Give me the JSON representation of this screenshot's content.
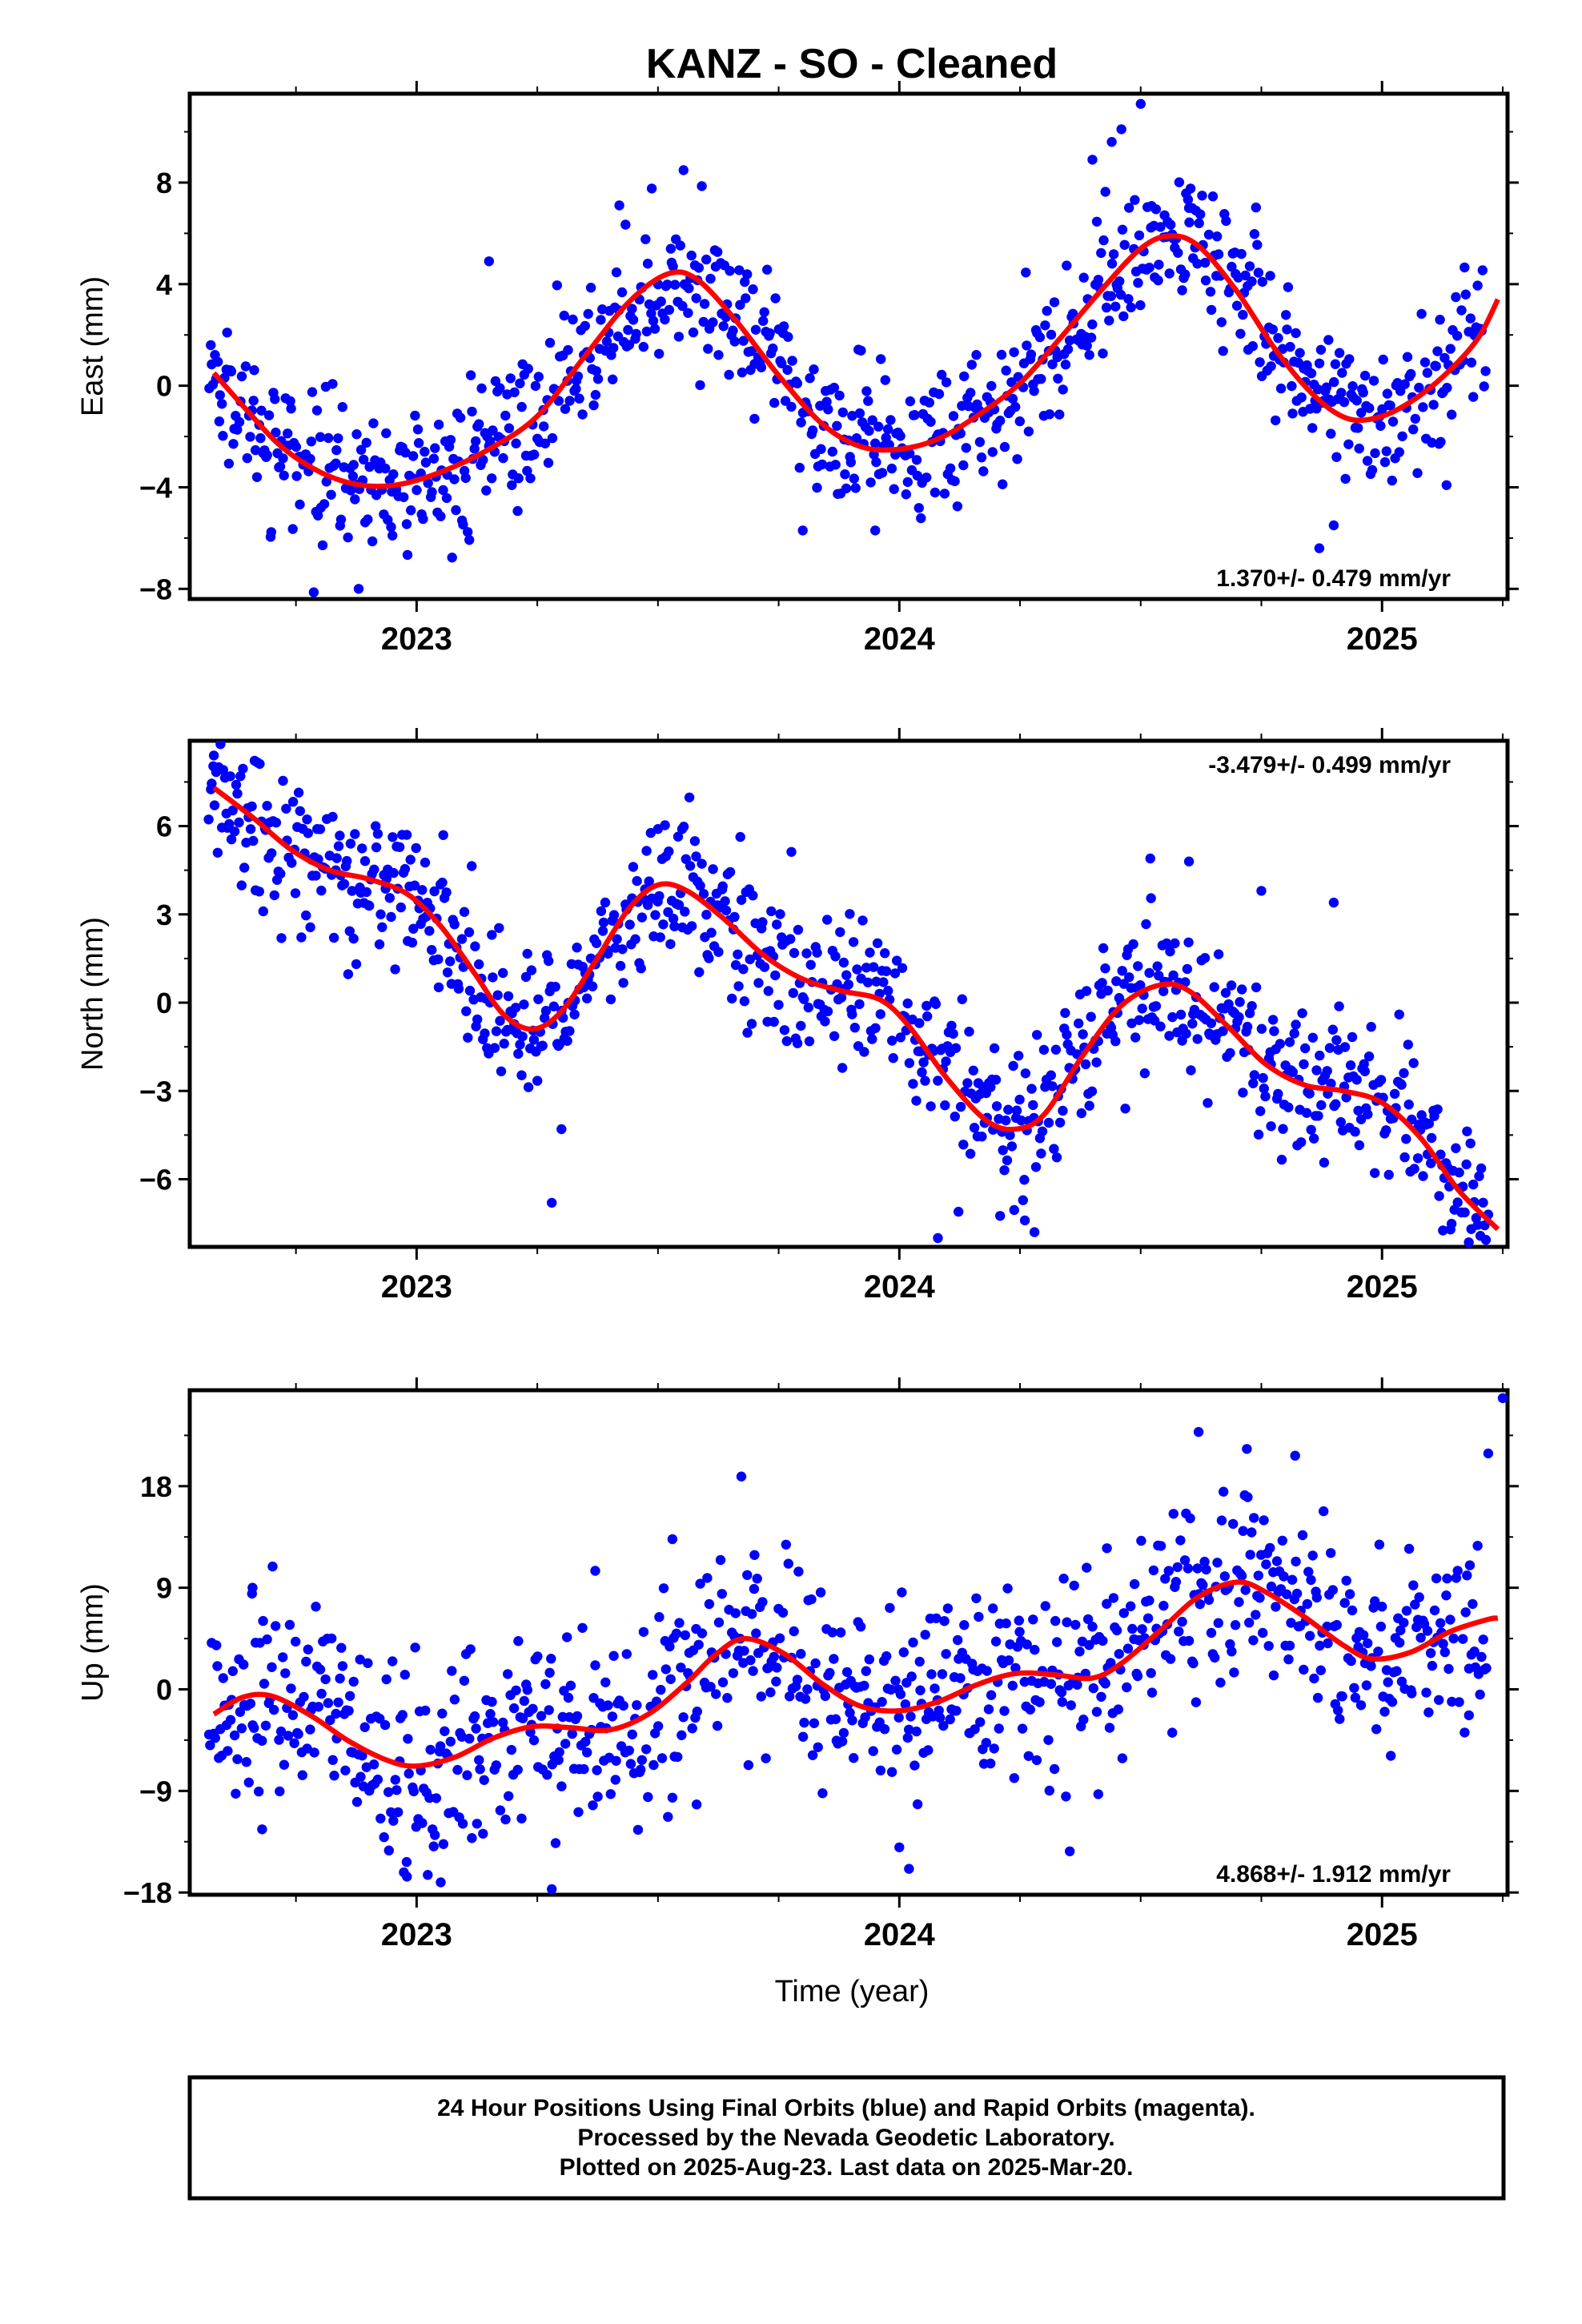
{
  "title": "KANZ  - SO - Cleaned",
  "xlabel": "Time (year)",
  "footer": {
    "line1": "24 Hour Positions Using Final Orbits (blue) and Rapid Orbits (magenta).",
    "line2": "Processed by the Nevada Geodetic Laboratory.",
    "line3": "Plotted on 2025-Aug-23. Last data on 2025-Mar-20."
  },
  "colors": {
    "observations": "#0000ff",
    "fit": "#ff0000",
    "axes": "#000000"
  },
  "chart_data": [
    {
      "type": "scatter",
      "panel": "east",
      "ylabel": "East (mm)",
      "xlim": [
        2022.53,
        2025.26
      ],
      "ylim": [
        -8.4,
        11.5
      ],
      "xticks": [
        2023,
        2024,
        2025
      ],
      "xtick_labels": [
        "2023",
        "2024",
        "2025"
      ],
      "yticks": [
        -8,
        -4,
        0,
        4,
        8
      ],
      "ytick_labels": [
        "−8",
        "−4",
        "0",
        "4",
        "8"
      ],
      "rate_label": "1.370+/- 0.479 mm/yr",
      "rate_position": "bottom-right",
      "grid": false,
      "fit_points": [
        [
          2022.58,
          0.5
        ],
        [
          2022.65,
          -1.0
        ],
        [
          2022.72,
          -2.4
        ],
        [
          2022.8,
          -3.4
        ],
        [
          2022.88,
          -3.9
        ],
        [
          2022.96,
          -3.9
        ],
        [
          2023.05,
          -3.4
        ],
        [
          2023.15,
          -2.5
        ],
        [
          2023.25,
          -1.2
        ],
        [
          2023.35,
          1.2
        ],
        [
          2023.44,
          3.3
        ],
        [
          2023.52,
          4.4
        ],
        [
          2023.58,
          4.2
        ],
        [
          2023.66,
          2.6
        ],
        [
          2023.75,
          0.4
        ],
        [
          2023.84,
          -1.5
        ],
        [
          2023.92,
          -2.4
        ],
        [
          2024.0,
          -2.5
        ],
        [
          2024.08,
          -2.1
        ],
        [
          2024.16,
          -1.2
        ],
        [
          2024.25,
          0.1
        ],
        [
          2024.33,
          1.8
        ],
        [
          2024.42,
          3.8
        ],
        [
          2024.5,
          5.4
        ],
        [
          2024.56,
          5.9
        ],
        [
          2024.62,
          5.5
        ],
        [
          2024.7,
          3.7
        ],
        [
          2024.78,
          1.4
        ],
        [
          2024.86,
          -0.4
        ],
        [
          2024.93,
          -1.3
        ],
        [
          2025.0,
          -1.2
        ],
        [
          2025.07,
          -0.5
        ],
        [
          2025.14,
          0.6
        ],
        [
          2025.2,
          1.9
        ],
        [
          2025.24,
          3.4
        ]
      ],
      "scatter_spread": 1.4,
      "outliers": [
        [
          2022.88,
          -8.0
        ],
        [
          2022.95,
          -5.9
        ],
        [
          2023.15,
          4.9
        ],
        [
          2023.42,
          7.1
        ],
        [
          2023.7,
          -1.3
        ],
        [
          2023.8,
          -5.7
        ],
        [
          2023.95,
          -5.7
        ],
        [
          2024.4,
          8.9
        ],
        [
          2024.46,
          10.1
        ],
        [
          2024.44,
          9.6
        ],
        [
          2024.5,
          11.1
        ],
        [
          2024.6,
          7.0
        ],
        [
          2024.87,
          -6.4
        ],
        [
          2024.9,
          -5.5
        ],
        [
          2025.12,
          2.6
        ]
      ]
    },
    {
      "type": "scatter",
      "panel": "north",
      "ylabel": "North (mm)",
      "xlim": [
        2022.53,
        2025.26
      ],
      "ylim": [
        -8.3,
        8.9
      ],
      "xticks": [
        2023,
        2024,
        2025
      ],
      "xtick_labels": [
        "2023",
        "2024",
        "2025"
      ],
      "yticks": [
        -6,
        -3,
        0,
        3,
        6
      ],
      "ytick_labels": [
        "−6",
        "−3",
        "0",
        "3",
        "6"
      ],
      "rate_label": "-3.479+/- 0.499 mm/yr",
      "rate_position": "top-right",
      "grid": false,
      "fit_points": [
        [
          2022.58,
          7.3
        ],
        [
          2022.66,
          6.3
        ],
        [
          2022.74,
          5.2
        ],
        [
          2022.82,
          4.5
        ],
        [
          2022.9,
          4.2
        ],
        [
          2022.98,
          3.7
        ],
        [
          2023.05,
          2.6
        ],
        [
          2023.12,
          1.0
        ],
        [
          2023.18,
          -0.4
        ],
        [
          2023.24,
          -0.9
        ],
        [
          2023.3,
          -0.3
        ],
        [
          2023.37,
          1.4
        ],
        [
          2023.44,
          3.2
        ],
        [
          2023.5,
          4.0
        ],
        [
          2023.56,
          3.8
        ],
        [
          2023.64,
          2.8
        ],
        [
          2023.72,
          1.6
        ],
        [
          2023.8,
          0.8
        ],
        [
          2023.88,
          0.4
        ],
        [
          2023.96,
          0.1
        ],
        [
          2024.02,
          -0.8
        ],
        [
          2024.1,
          -2.6
        ],
        [
          2024.18,
          -4.0
        ],
        [
          2024.24,
          -4.3
        ],
        [
          2024.3,
          -3.8
        ],
        [
          2024.38,
          -1.8
        ],
        [
          2024.46,
          -0.1
        ],
        [
          2024.54,
          0.6
        ],
        [
          2024.6,
          0.4
        ],
        [
          2024.68,
          -0.8
        ],
        [
          2024.76,
          -2.1
        ],
        [
          2024.84,
          -2.8
        ],
        [
          2024.92,
          -3.0
        ],
        [
          2025.0,
          -3.4
        ],
        [
          2025.08,
          -4.6
        ],
        [
          2025.16,
          -6.4
        ],
        [
          2025.24,
          -7.7
        ]
      ],
      "scatter_spread": 1.3,
      "outliers": [
        [
          2022.58,
          8.4
        ],
        [
          2022.59,
          8.0
        ],
        [
          2023.28,
          -6.8
        ],
        [
          2023.3,
          -4.3
        ],
        [
          2023.5,
          5.9
        ],
        [
          2023.55,
          5.9
        ],
        [
          2024.08,
          -8.0
        ],
        [
          2024.28,
          -7.8
        ],
        [
          2024.26,
          -7.4
        ],
        [
          2024.52,
          4.9
        ],
        [
          2024.6,
          4.8
        ],
        [
          2024.75,
          3.8
        ],
        [
          2024.9,
          3.4
        ],
        [
          2024.77,
          -4.2
        ],
        [
          2025.22,
          -7.2
        ]
      ]
    },
    {
      "type": "scatter",
      "panel": "up",
      "ylabel": "Up (mm)",
      "xlim": [
        2022.53,
        2025.26
      ],
      "ylim": [
        -18.2,
        26.5
      ],
      "xticks": [
        2023,
        2024,
        2025
      ],
      "xtick_labels": [
        "2023",
        "2024",
        "2025"
      ],
      "yticks": [
        -18,
        -9,
        0,
        9,
        18
      ],
      "ytick_labels": [
        "−18",
        "−9",
        "0",
        "9",
        "18"
      ],
      "rate_label": "4.868+/- 1.912 mm/yr",
      "rate_position": "bottom-right",
      "grid": false,
      "fit_points": [
        [
          2022.58,
          -2.2
        ],
        [
          2022.64,
          -0.7
        ],
        [
          2022.7,
          -0.6
        ],
        [
          2022.78,
          -2.3
        ],
        [
          2022.86,
          -4.6
        ],
        [
          2022.94,
          -6.3
        ],
        [
          2023.0,
          -6.8
        ],
        [
          2023.08,
          -6.0
        ],
        [
          2023.16,
          -4.3
        ],
        [
          2023.24,
          -3.3
        ],
        [
          2023.32,
          -3.4
        ],
        [
          2023.4,
          -3.6
        ],
        [
          2023.48,
          -2.2
        ],
        [
          2023.56,
          0.6
        ],
        [
          2023.62,
          3.1
        ],
        [
          2023.68,
          4.5
        ],
        [
          2023.76,
          3.2
        ],
        [
          2023.84,
          0.5
        ],
        [
          2023.92,
          -1.5
        ],
        [
          2024.0,
          -1.9
        ],
        [
          2024.08,
          -1.1
        ],
        [
          2024.16,
          0.4
        ],
        [
          2024.24,
          1.4
        ],
        [
          2024.32,
          1.3
        ],
        [
          2024.4,
          1.0
        ],
        [
          2024.46,
          2.3
        ],
        [
          2024.54,
          5.2
        ],
        [
          2024.62,
          8.2
        ],
        [
          2024.7,
          9.5
        ],
        [
          2024.76,
          8.6
        ],
        [
          2024.84,
          6.4
        ],
        [
          2024.92,
          3.9
        ],
        [
          2024.98,
          2.7
        ],
        [
          2025.06,
          3.3
        ],
        [
          2025.14,
          5.1
        ],
        [
          2025.22,
          6.2
        ],
        [
          2025.24,
          6.3
        ]
      ],
      "scatter_spread": 4.5,
      "outliers": [
        [
          2022.66,
          9.0
        ],
        [
          2022.68,
          -12.4
        ],
        [
          2022.98,
          -16.6
        ],
        [
          2023.05,
          -17.1
        ],
        [
          2023.28,
          -17.7
        ],
        [
          2023.37,
          10.5
        ],
        [
          2023.53,
          13.3
        ],
        [
          2023.7,
          11.9
        ],
        [
          2023.58,
          -10.2
        ],
        [
          2024.0,
          -14.0
        ],
        [
          2024.02,
          -15.9
        ],
        [
          2024.43,
          12.5
        ],
        [
          2024.62,
          22.8
        ],
        [
          2024.72,
          21.3
        ],
        [
          2024.82,
          20.7
        ],
        [
          2025.22,
          20.9
        ],
        [
          2025.25,
          25.8
        ],
        [
          2025.18,
          -2.3
        ]
      ]
    }
  ]
}
